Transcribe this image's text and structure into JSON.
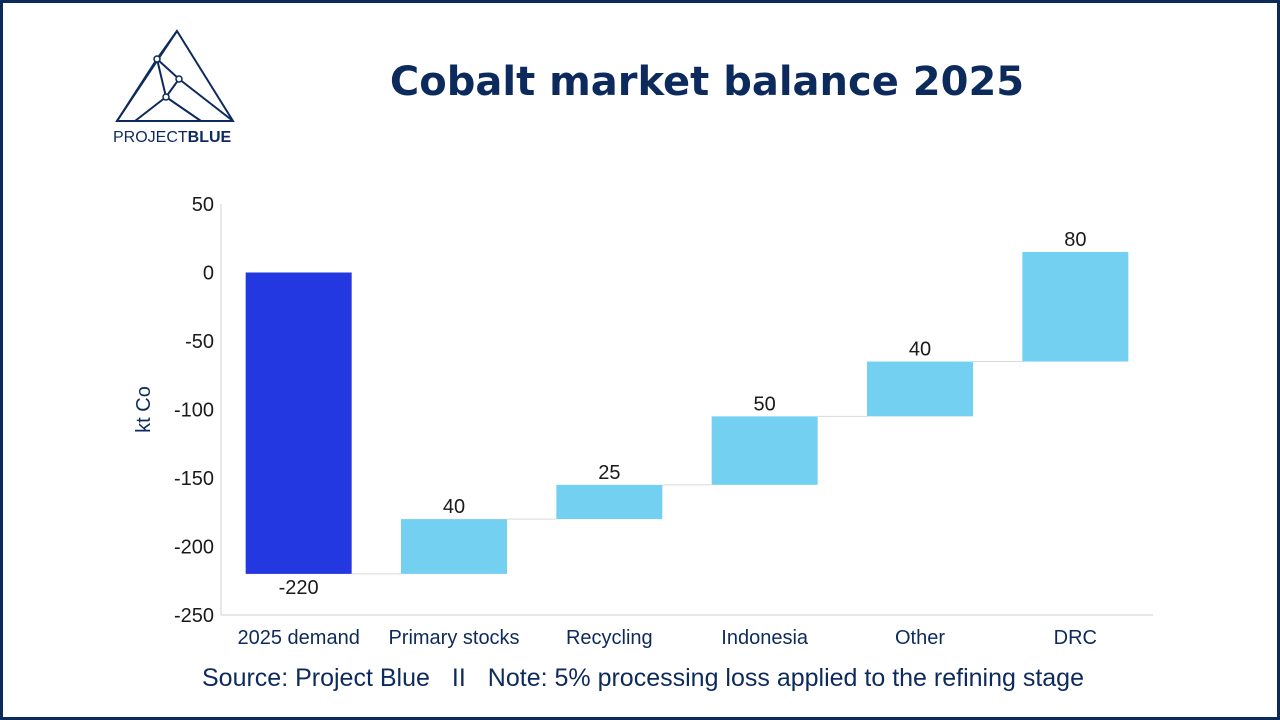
{
  "logo": {
    "text_light": "PROJECT",
    "text_bold": "BLUE"
  },
  "title": "Cobalt market balance 2025",
  "source": {
    "left": "Source: Project Blue",
    "separator": "II",
    "right": "Note: 5% processing loss applied to the refining stage"
  },
  "colors": {
    "demand": "#2338e0",
    "supply": "#74d0f1",
    "text": "#0d2a5c",
    "axis": "#1a1a1a",
    "connector": "#d9d9d9"
  },
  "chart_data": {
    "type": "waterfall",
    "ylabel": "kt Co",
    "ylim": [
      -250,
      50
    ],
    "yticks": [
      50,
      0,
      -50,
      -100,
      -150,
      -200,
      -250
    ],
    "categories": [
      "2025 demand",
      "Primary stocks",
      "Recycling",
      "Indonesia",
      "Other",
      "DRC"
    ],
    "values": [
      -220,
      40,
      25,
      50,
      40,
      80
    ],
    "labels": [
      "-220",
      "40",
      "25",
      "50",
      "40",
      "80"
    ],
    "bar_kind": [
      "demand",
      "supply",
      "supply",
      "supply",
      "supply",
      "supply"
    ],
    "grid": false,
    "legend": "none"
  }
}
